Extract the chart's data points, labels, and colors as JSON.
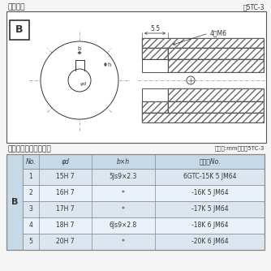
{
  "title_drawing": "軸穴形状",
  "fig_no": "図5TC-3",
  "table_title": "軸穴形状コードー覧表",
  "table_unit": "（単位:mm）　表5TC-3",
  "table_headers": [
    "No.",
    "φd",
    "b×h",
    "コードNo."
  ],
  "table_rows": [
    [
      "1",
      "15H 7",
      "5Js9×2.3",
      "6GTC-15K 5 JM64"
    ],
    [
      "2",
      "16H 7",
      "*",
      "-16K 5 JM64"
    ],
    [
      "3",
      "17H 7",
      "*",
      "-17K 5 JM64"
    ],
    [
      "4",
      "18H 7",
      "6Js9×2.8",
      "-18K 6 JM64"
    ],
    [
      "5",
      "20H 7",
      "*",
      "-20K 6 JM64"
    ]
  ],
  "B_label": "B",
  "dim_55": "5.5",
  "dim_4M6": "4－M6",
  "dim_b": "b",
  "dim_h": "h",
  "dim_phi": "φd",
  "bg_color": "#f5f5f5",
  "table_header_bg": "#c5d9e8",
  "table_row_bg1": "#dce6f1",
  "table_row_bg2": "#eaf1f8",
  "table_border": "#888888",
  "line_color": "#333333",
  "hatch_color": "#666666",
  "dash_color": "#888888",
  "box_border": "#555555"
}
